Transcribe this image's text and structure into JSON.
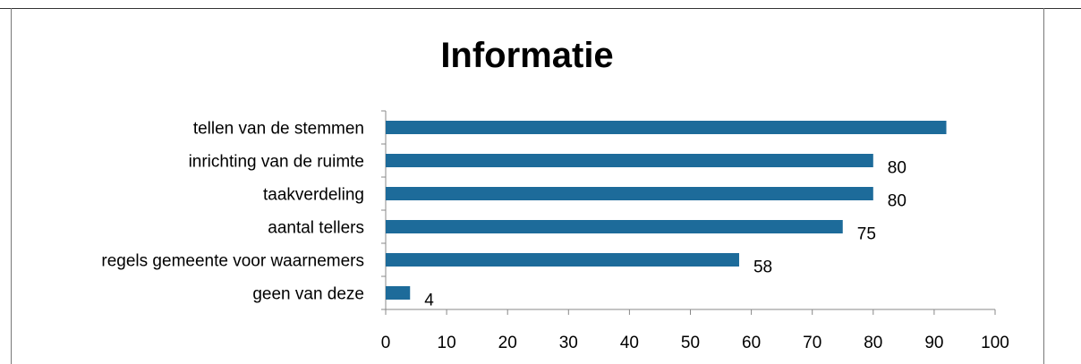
{
  "chart_data": {
    "type": "bar",
    "orientation": "horizontal",
    "title": "Informatie",
    "categories": [
      "tellen van de stemmen",
      "inrichting van de ruimte",
      "taakverdeling",
      "aantal tellers",
      "regels gemeente voor waarnemers",
      "geen van deze"
    ],
    "values": [
      92,
      80,
      80,
      75,
      58,
      4
    ],
    "data_labels": [
      "",
      "80",
      "80",
      "75",
      "58",
      "4"
    ],
    "xlim": [
      0,
      100
    ],
    "x_ticks": [
      0,
      10,
      20,
      30,
      40,
      50,
      60,
      70,
      80,
      90,
      100
    ],
    "bar_color": "#1d6b9a",
    "grid": false,
    "legend": "none"
  }
}
